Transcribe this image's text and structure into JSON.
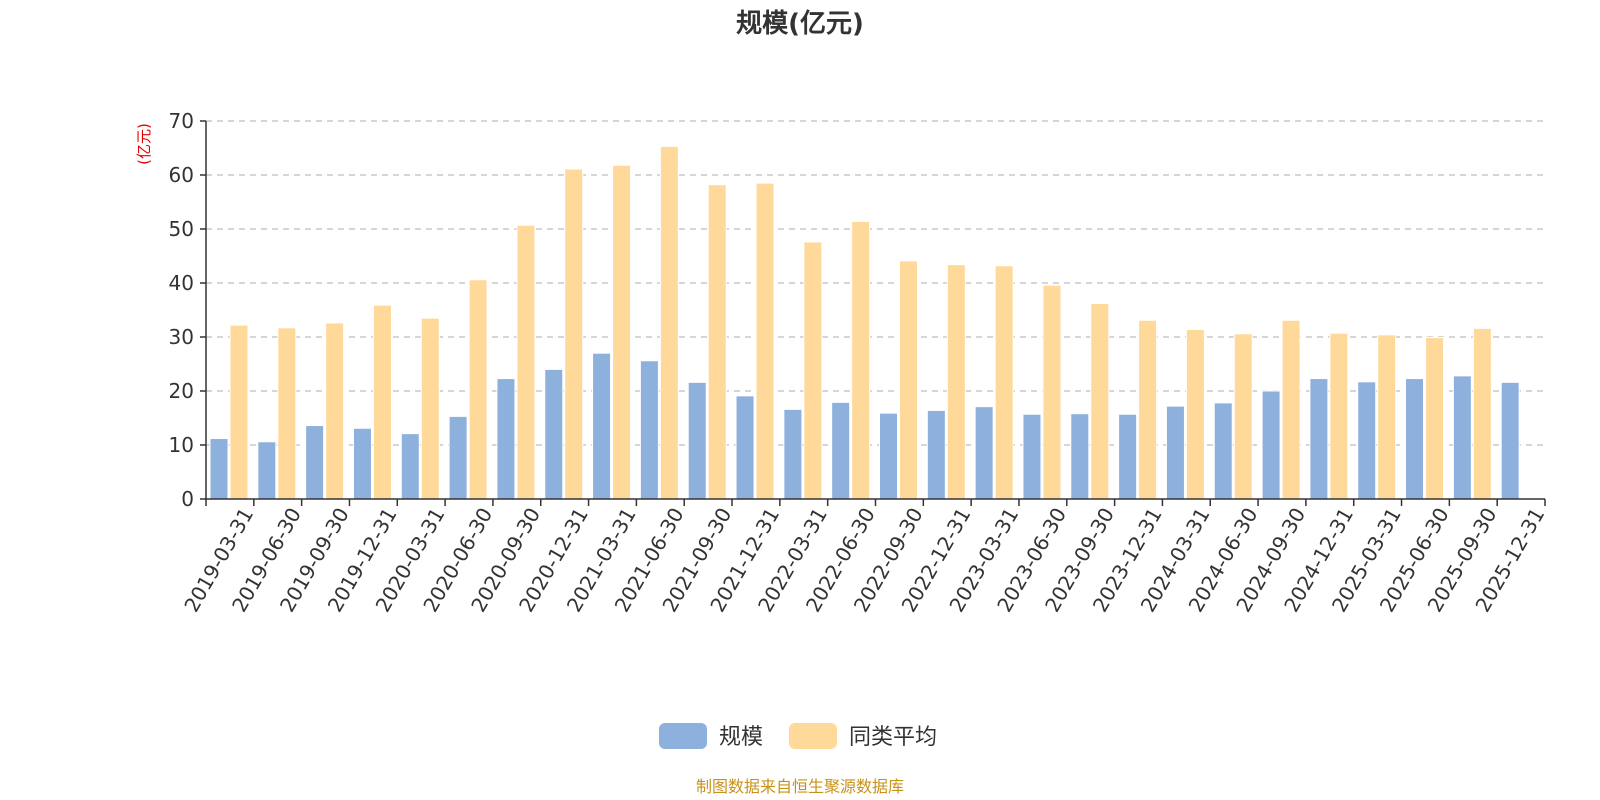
{
  "chart_data": {
    "type": "bar",
    "title": "规模(亿元)",
    "ylabel": "(亿元)",
    "ylim": [
      0,
      70
    ],
    "yticks": [
      0,
      10,
      20,
      30,
      40,
      50,
      60,
      70
    ],
    "grid": true,
    "legend_position": "bottom",
    "categories": [
      "2019-03-31",
      "2019-06-30",
      "2019-09-30",
      "2019-12-31",
      "2020-03-31",
      "2020-06-30",
      "2020-09-30",
      "2020-12-31",
      "2021-03-31",
      "2021-06-30",
      "2021-09-30",
      "2021-12-31",
      "2022-03-31",
      "2022-06-30",
      "2022-09-30",
      "2022-12-31",
      "2023-03-31",
      "2023-06-30",
      "2023-09-30",
      "2023-12-31",
      "2024-03-31",
      "2024-06-30",
      "2024-09-30",
      "2024-12-31",
      "2025-03-31",
      "2025-06-30",
      "2025-09-30",
      "2025-12-31"
    ],
    "series": [
      {
        "name": "规模",
        "color": "#8eb0dc",
        "values": [
          11.2,
          10.6,
          13.6,
          13.1,
          12.1,
          15.3,
          22.3,
          24.0,
          27.0,
          25.6,
          21.6,
          19.1,
          16.6,
          17.9,
          15.9,
          16.4,
          17.1,
          15.7,
          15.8,
          15.7,
          17.2,
          17.8,
          20.0,
          22.3,
          21.7,
          22.3,
          22.8,
          21.6
        ]
      },
      {
        "name": "同类平均",
        "color": "#ffd99a",
        "values": [
          32.2,
          31.7,
          32.6,
          35.9,
          33.5,
          40.6,
          50.7,
          61.1,
          61.8,
          65.3,
          58.2,
          58.5,
          47.6,
          51.4,
          44.1,
          43.4,
          43.2,
          39.6,
          36.2,
          33.1,
          31.4,
          30.6,
          33.1,
          30.7,
          30.4,
          29.9,
          31.6,
          null
        ]
      }
    ]
  },
  "footer": {
    "source": "制图数据来自恒生聚源数据库"
  }
}
